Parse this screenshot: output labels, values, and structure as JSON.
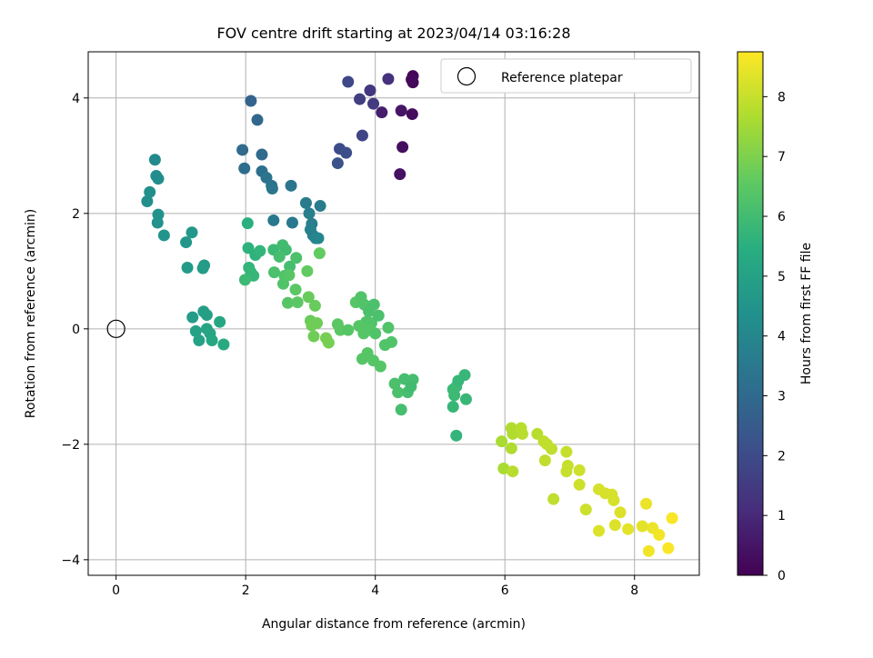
{
  "chart_data": {
    "type": "scatter",
    "title": "FOV centre drift starting at 2023/04/14 03:16:28",
    "xlabel": "Angular distance from reference (arcmin)",
    "ylabel": "Rotation from reference (arcmin)",
    "xlim": [
      -0.43,
      9.0
    ],
    "ylim": [
      -4.27,
      4.8
    ],
    "xticks": [
      0,
      2,
      4,
      6,
      8
    ],
    "yticks": [
      -4,
      -2,
      0,
      2,
      4
    ],
    "xtick_labels": [
      "0",
      "2",
      "4",
      "6",
      "8"
    ],
    "ytick_labels": [
      "−4",
      "−2",
      "0",
      "2",
      "4"
    ],
    "grid": true,
    "colormap": "viridis",
    "colorbar": {
      "label": "Hours from first FF file",
      "range": [
        0,
        8.75
      ],
      "ticks": [
        0,
        1,
        2,
        3,
        4,
        5,
        6,
        7,
        8
      ],
      "tick_labels": [
        "0",
        "1",
        "2",
        "3",
        "4",
        "5",
        "6",
        "7",
        "8"
      ]
    },
    "legend": {
      "placement": "upper right",
      "entries": [
        "Reference platepar"
      ]
    },
    "reference_point": {
      "x": 0,
      "y": 0
    },
    "series": [
      {
        "points": [
          [
            4.58,
            4.38,
            0.1
          ],
          [
            4.58,
            4.27,
            0.15
          ],
          [
            4.56,
            4.32,
            0.2
          ],
          [
            4.57,
            3.72,
            0.25
          ],
          [
            4.42,
            3.15,
            0.35
          ],
          [
            4.38,
            2.68,
            0.4
          ],
          [
            4.4,
            3.78,
            0.5
          ],
          [
            4.1,
            3.75,
            0.7
          ],
          [
            4.2,
            4.33,
            1.2
          ],
          [
            3.92,
            4.13,
            1.4
          ],
          [
            3.97,
            3.9,
            1.5
          ],
          [
            3.76,
            3.98,
            1.6
          ],
          [
            3.8,
            3.35,
            1.8
          ],
          [
            3.58,
            4.28,
            1.9
          ],
          [
            3.45,
            3.12,
            2.0
          ],
          [
            3.55,
            3.05,
            2.1
          ],
          [
            3.42,
            2.87,
            2.2
          ],
          [
            2.08,
            3.95,
            2.8
          ],
          [
            2.18,
            3.62,
            2.9
          ],
          [
            2.25,
            3.02,
            3.0
          ],
          [
            1.95,
            3.1,
            3.0
          ],
          [
            1.98,
            2.78,
            3.1
          ],
          [
            2.25,
            2.73,
            3.2
          ],
          [
            2.32,
            2.62,
            3.3
          ],
          [
            2.4,
            2.48,
            3.3
          ],
          [
            2.41,
            2.43,
            3.4
          ],
          [
            2.7,
            2.48,
            3.4
          ],
          [
            2.43,
            1.88,
            3.5
          ],
          [
            2.72,
            1.84,
            3.5
          ],
          [
            2.93,
            2.18,
            3.6
          ],
          [
            3.15,
            2.13,
            3.6
          ],
          [
            2.98,
            2.0,
            3.7
          ],
          [
            3.02,
            1.82,
            3.7
          ],
          [
            3.0,
            1.72,
            3.8
          ],
          [
            3.04,
            1.62,
            3.8
          ],
          [
            3.08,
            1.57,
            3.9
          ],
          [
            3.12,
            1.57,
            4.0
          ],
          [
            0.6,
            2.93,
            4.1
          ],
          [
            0.62,
            2.65,
            4.2
          ],
          [
            0.65,
            2.6,
            4.2
          ],
          [
            0.52,
            2.37,
            4.3
          ],
          [
            0.48,
            2.21,
            4.3
          ],
          [
            0.65,
            1.98,
            4.4
          ],
          [
            0.64,
            1.84,
            4.4
          ],
          [
            0.74,
            1.62,
            4.5
          ],
          [
            1.08,
            1.5,
            4.6
          ],
          [
            1.17,
            1.67,
            4.6
          ],
          [
            1.1,
            1.06,
            4.7
          ],
          [
            1.36,
            1.1,
            4.7
          ],
          [
            1.34,
            1.05,
            4.8
          ],
          [
            1.18,
            0.2,
            4.8
          ],
          [
            1.35,
            0.3,
            4.9
          ],
          [
            1.4,
            0.24,
            4.9
          ],
          [
            1.23,
            -0.04,
            5.0
          ],
          [
            1.28,
            -0.2,
            5.0
          ],
          [
            1.4,
            0.0,
            5.1
          ],
          [
            1.45,
            -0.08,
            5.1
          ],
          [
            1.48,
            -0.2,
            5.2
          ],
          [
            1.6,
            0.12,
            5.2
          ],
          [
            1.66,
            -0.27,
            5.3
          ],
          [
            2.03,
            1.83,
            5.5
          ],
          [
            2.04,
            1.4,
            5.6
          ],
          [
            2.15,
            1.28,
            5.6
          ],
          [
            2.22,
            1.35,
            5.7
          ],
          [
            2.05,
            1.06,
            5.7
          ],
          [
            2.08,
            0.98,
            5.8
          ],
          [
            2.12,
            0.92,
            5.8
          ],
          [
            1.99,
            0.85,
            5.9
          ],
          [
            2.43,
            1.37,
            5.9
          ],
          [
            2.57,
            1.45,
            6.0
          ],
          [
            2.62,
            1.37,
            6.0
          ],
          [
            2.52,
            1.25,
            6.1
          ],
          [
            2.68,
            1.08,
            6.1
          ],
          [
            2.78,
            1.23,
            6.2
          ],
          [
            2.44,
            0.98,
            6.2
          ],
          [
            2.6,
            0.92,
            6.3
          ],
          [
            2.58,
            0.78,
            6.3
          ],
          [
            2.67,
            0.93,
            6.4
          ],
          [
            2.65,
            0.45,
            6.4
          ],
          [
            2.77,
            0.68,
            6.5
          ],
          [
            2.8,
            0.46,
            6.5
          ],
          [
            2.95,
            1.0,
            6.6
          ],
          [
            3.14,
            1.31,
            6.6
          ],
          [
            2.97,
            0.55,
            6.7
          ],
          [
            3.07,
            0.4,
            6.7
          ],
          [
            3.0,
            0.14,
            6.7
          ],
          [
            3.02,
            0.06,
            6.8
          ],
          [
            3.1,
            0.1,
            6.8
          ],
          [
            3.05,
            -0.13,
            6.8
          ],
          [
            3.24,
            -0.16,
            6.9
          ],
          [
            3.28,
            -0.24,
            6.9
          ],
          [
            3.42,
            0.08,
            6.5
          ],
          [
            3.46,
            -0.02,
            6.5
          ],
          [
            3.58,
            -0.02,
            6.4
          ],
          [
            3.7,
            0.46,
            6.4
          ],
          [
            3.78,
            0.55,
            6.3
          ],
          [
            3.83,
            0.42,
            6.3
          ],
          [
            3.9,
            0.3,
            6.2
          ],
          [
            3.98,
            0.42,
            6.2
          ],
          [
            3.86,
            0.12,
            6.3
          ],
          [
            3.94,
            0.1,
            6.3
          ],
          [
            4.05,
            0.23,
            6.2
          ],
          [
            3.75,
            0.05,
            6.4
          ],
          [
            3.82,
            -0.08,
            6.4
          ],
          [
            3.9,
            -0.02,
            6.4
          ],
          [
            4.0,
            -0.08,
            6.3
          ],
          [
            4.2,
            0.02,
            6.3
          ],
          [
            3.8,
            -0.52,
            6.4
          ],
          [
            3.88,
            -0.42,
            6.4
          ],
          [
            3.97,
            -0.55,
            6.4
          ],
          [
            4.08,
            -0.65,
            6.4
          ],
          [
            4.15,
            -0.28,
            6.3
          ],
          [
            4.25,
            -0.23,
            6.3
          ],
          [
            4.3,
            -0.95,
            6.2
          ],
          [
            4.35,
            -1.1,
            6.2
          ],
          [
            4.4,
            -1.4,
            6.1
          ],
          [
            4.45,
            -0.87,
            6.1
          ],
          [
            4.5,
            -1.1,
            6.1
          ],
          [
            4.58,
            -0.88,
            6.1
          ],
          [
            4.55,
            -1.0,
            6.0
          ],
          [
            5.2,
            -1.05,
            5.9
          ],
          [
            5.22,
            -1.15,
            5.9
          ],
          [
            5.25,
            -1.0,
            5.9
          ],
          [
            5.28,
            -0.9,
            5.8
          ],
          [
            5.2,
            -1.35,
            5.8
          ],
          [
            5.25,
            -1.85,
            5.7
          ],
          [
            5.38,
            -0.8,
            5.8
          ],
          [
            5.4,
            -1.22,
            5.8
          ],
          [
            5.95,
            -1.95,
            7.6
          ],
          [
            5.98,
            -2.42,
            7.6
          ],
          [
            6.1,
            -1.72,
            7.7
          ],
          [
            6.12,
            -1.82,
            7.7
          ],
          [
            6.1,
            -2.07,
            7.7
          ],
          [
            6.12,
            -2.47,
            7.8
          ],
          [
            6.25,
            -1.72,
            7.8
          ],
          [
            6.27,
            -1.82,
            7.8
          ],
          [
            6.5,
            -1.82,
            7.8
          ],
          [
            6.6,
            -1.95,
            7.9
          ],
          [
            6.65,
            -2.0,
            7.9
          ],
          [
            6.72,
            -2.08,
            7.9
          ],
          [
            6.62,
            -2.28,
            7.9
          ],
          [
            6.75,
            -2.95,
            7.9
          ],
          [
            6.95,
            -2.13,
            8.0
          ],
          [
            6.97,
            -2.37,
            8.0
          ],
          [
            6.95,
            -2.47,
            8.0
          ],
          [
            7.15,
            -2.45,
            8.1
          ],
          [
            7.15,
            -2.7,
            8.1
          ],
          [
            7.25,
            -3.13,
            8.1
          ],
          [
            7.45,
            -2.78,
            8.2
          ],
          [
            7.55,
            -2.85,
            8.2
          ],
          [
            7.65,
            -2.87,
            8.2
          ],
          [
            7.68,
            -2.97,
            8.2
          ],
          [
            7.45,
            -3.5,
            8.3
          ],
          [
            7.7,
            -3.4,
            8.3
          ],
          [
            7.78,
            -3.18,
            8.3
          ],
          [
            7.9,
            -3.47,
            8.4
          ],
          [
            8.12,
            -3.42,
            8.4
          ],
          [
            8.18,
            -3.03,
            8.5
          ],
          [
            8.28,
            -3.45,
            8.5
          ],
          [
            8.38,
            -3.57,
            8.6
          ],
          [
            8.22,
            -3.85,
            8.6
          ],
          [
            8.52,
            -3.8,
            8.7
          ],
          [
            8.58,
            -3.28,
            8.7
          ]
        ]
      }
    ]
  }
}
